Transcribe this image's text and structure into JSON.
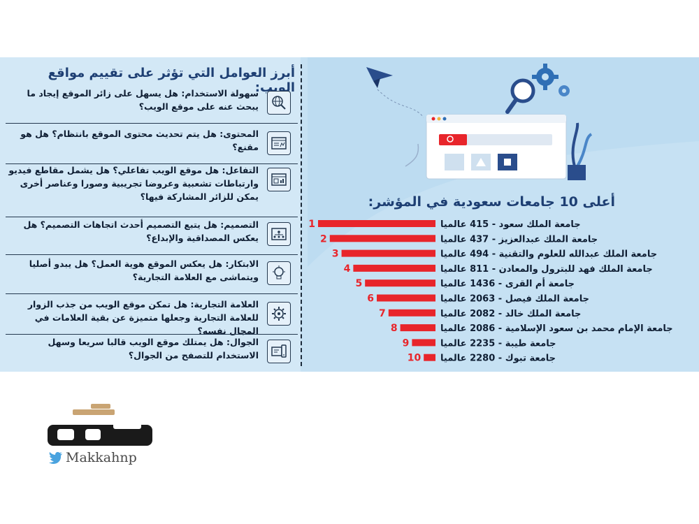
{
  "factors_title": "أبرز العوامل التي تؤثر على تقييم مواقع الويب:",
  "factors": [
    {
      "icon": "globe-search-icon",
      "text": "سهولة الاستخدام: هل يسهل على زائر الموقع إيجاد ما يبحث عنه على موقع الويب؟"
    },
    {
      "icon": "content-window-icon",
      "text": "المحتوى: هل يتم تحديث محتوى الموقع بانتظام؟ هل هو مقنع؟"
    },
    {
      "icon": "interactive-window-icon",
      "text": "التفاعل: هل موقع الويب تفاعلي؟ هل يشمل مقاطع فيديو وارتباطات تشعبية وعروضا تجريبية وصورا وعناصر أخرى يمكن للزائر المشاركة فيها؟"
    },
    {
      "icon": "design-flow-icon",
      "text": "التصميم: هل يتبع التصميم أحدث اتجاهات التصميم؟ هل يعكس المصداقية والإبداع؟"
    },
    {
      "icon": "lightbulb-icon",
      "text": "الابتكار: هل يعكس الموقع هوية العمل؟ هل يبدو أصليا ويتماشى مع العلامة التجارية؟"
    },
    {
      "icon": "brand-gear-icon",
      "text": "العلامة التجارية: هل تمكن موقع الويب من جذب الزوار للعلامة التجارية وجعلها متميزة عن بقية العلامات في المجال نفسه؟"
    },
    {
      "icon": "mobile-devices-icon",
      "text": "الجوال: هل يمتلك موقع الويب قالبا سريعا وسهل الاستخدام للتصفح من الجوال؟"
    }
  ],
  "chart_data": {
    "type": "bar",
    "orientation": "horizontal",
    "title": "أعلى 10 جامعات سعودية في المؤشر:",
    "ranks": [
      "1",
      "2",
      "3",
      "4",
      "5",
      "6",
      "7",
      "8",
      "9",
      "10"
    ],
    "categories": [
      "جامعة الملك سعود - 415 عالميا",
      "جامعة الملك عبدالعزيز - 437 عالميا",
      "جامعة الملك عبدالله للعلوم والتقنية - 494 عالميا",
      "جامعة الملك فهد للبترول والمعادن - 811 عالميا",
      "جامعة أم القرى - 1436 عالميا",
      "جامعة الملك فيصل - 2063 عالميا",
      "جامعة الملك خالد - 2082 عالميا",
      "جامعة الإمام محمد بن سعود الإسلامية - 2086 عالميا",
      "جامعة طيبة - 2235 عالميا",
      "جامعة تبوك - 2280 عالميا"
    ],
    "values": [
      10,
      9,
      8,
      7,
      6,
      5,
      4,
      3,
      2,
      1
    ],
    "bar_color": "#e8252b",
    "rank_color": "#e8252b"
  },
  "logo": {
    "name": "مكة",
    "handle": "Makkahnp"
  },
  "colors": {
    "background": "#cfe6f5",
    "title": "#1e3f73",
    "text": "#0f1e33",
    "accent": "#e8252b"
  }
}
